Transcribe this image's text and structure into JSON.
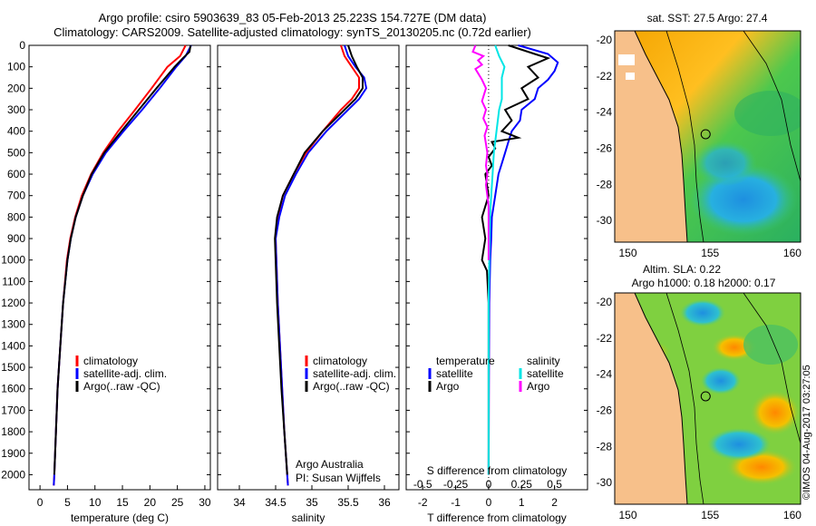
{
  "header": {
    "title_line1": "Argo profile: csiro 5903639_83 05-Feb-2013 25.223S 154.727E (DM data)",
    "title_line2": "Climatology: CARS2009. Satellite-adjusted climatology: synTS_20130205.nc (0.72d earlier)"
  },
  "chart_data": [
    {
      "type": "line",
      "name": "temperature-profile",
      "xlabel": "temperature (deg C)",
      "ylabel": "",
      "xlim": [
        -2,
        31
      ],
      "ylim": [
        2070,
        0
      ],
      "xticks": [
        0,
        5,
        10,
        15,
        20,
        25,
        30
      ],
      "yticks": [
        0,
        100,
        200,
        300,
        400,
        500,
        600,
        700,
        800,
        900,
        1000,
        1100,
        1200,
        1300,
        1400,
        1500,
        1600,
        1700,
        1800,
        1900,
        2000
      ],
      "legend": [
        "climatology",
        "satellite-adj. clim.",
        "Argo(..raw -QC)"
      ],
      "series": [
        {
          "name": "climatology",
          "color": "#ff0000",
          "depth": [
            0,
            50,
            100,
            200,
            300,
            400,
            500,
            600,
            700,
            800,
            900,
            1000,
            1200,
            1400,
            1600,
            1800,
            2000,
            2050
          ],
          "values": [
            26.5,
            25.5,
            23.2,
            20.3,
            17.3,
            14.2,
            11.5,
            9.3,
            7.6,
            6.4,
            5.5,
            4.9,
            4.2,
            3.7,
            3.2,
            2.9,
            2.6,
            2.5
          ]
        },
        {
          "name": "satellite-adj. clim.",
          "color": "#0000ff",
          "depth": [
            0,
            50,
            100,
            200,
            300,
            400,
            500,
            600,
            700,
            800,
            900,
            1000,
            1200,
            1400,
            1600,
            1800,
            2000,
            2050
          ],
          "values": [
            27.5,
            26.5,
            24.8,
            21.8,
            18.6,
            15.2,
            12.0,
            9.6,
            7.8,
            6.5,
            5.6,
            5.0,
            4.2,
            3.7,
            3.2,
            2.9,
            2.6,
            2.5
          ]
        },
        {
          "name": "Argo(..raw -QC)",
          "color": "#000000",
          "depth": [
            0,
            30,
            60,
            100,
            200,
            300,
            400,
            500,
            600,
            700,
            800,
            900,
            1000,
            1200,
            1400,
            1600,
            1800,
            2000
          ],
          "values": [
            27.4,
            27.2,
            26.0,
            24.5,
            21.2,
            18.0,
            14.8,
            11.7,
            9.4,
            7.8,
            6.5,
            5.6,
            5.0,
            4.2,
            3.7,
            3.2,
            2.9,
            2.6
          ]
        }
      ]
    },
    {
      "type": "line",
      "name": "salinity-profile",
      "xlabel": "salinity",
      "ylabel": "",
      "xlim": [
        33.7,
        36.2
      ],
      "ylim": [
        2070,
        0
      ],
      "xticks": [
        34,
        34.5,
        35,
        35.5,
        36
      ],
      "legend": [
        "climatology",
        "satellite-adj. clim.",
        "Argo(..raw -QC)"
      ],
      "series": [
        {
          "name": "climatology",
          "color": "#ff0000",
          "depth": [
            0,
            50,
            100,
            150,
            200,
            250,
            300,
            400,
            500,
            600,
            700,
            800,
            900,
            1000,
            1200,
            1400,
            1600,
            1800,
            2000,
            2050
          ],
          "values": [
            35.4,
            35.45,
            35.55,
            35.65,
            35.65,
            35.55,
            35.4,
            35.15,
            34.92,
            34.75,
            34.6,
            34.53,
            34.5,
            34.51,
            34.53,
            34.56,
            34.59,
            34.62,
            34.66,
            34.67
          ]
        },
        {
          "name": "satellite-adj. clim.",
          "color": "#0000ff",
          "depth": [
            0,
            50,
            100,
            150,
            200,
            250,
            300,
            400,
            500,
            600,
            700,
            800,
            900,
            1000,
            1200,
            1400,
            1600,
            1800,
            2000,
            2050
          ],
          "values": [
            35.45,
            35.5,
            35.6,
            35.72,
            35.75,
            35.65,
            35.5,
            35.2,
            34.95,
            34.78,
            34.63,
            34.55,
            34.5,
            34.51,
            34.53,
            34.56,
            34.59,
            34.62,
            34.66,
            34.67
          ]
        },
        {
          "name": "Argo(..raw -QC)",
          "color": "#000000",
          "depth": [
            0,
            50,
            100,
            150,
            200,
            250,
            300,
            400,
            500,
            600,
            700,
            800,
            900,
            1000,
            1200,
            1400,
            1600,
            1800,
            2000
          ],
          "values": [
            35.5,
            35.55,
            35.62,
            35.7,
            35.7,
            35.6,
            35.45,
            35.15,
            34.9,
            34.75,
            34.6,
            34.52,
            34.49,
            34.5,
            34.52,
            34.55,
            34.58,
            34.62,
            34.66
          ]
        }
      ],
      "annotation": {
        "line1": "Argo Australia",
        "line2": "PI: Susan Wijffels"
      }
    },
    {
      "type": "line",
      "name": "difference-profile",
      "xlabel": "T difference from climatology",
      "xlabel_top": "S difference from climatology",
      "xlim": [
        -2.5,
        3
      ],
      "ylim": [
        2070,
        0
      ],
      "xticks": [
        -2,
        -1,
        0,
        1,
        2
      ],
      "sticks": [
        "-0.5",
        "-0.25",
        "0",
        "0.25",
        "0.5"
      ],
      "legend_temperature": {
        "title": "temperature",
        "satellite": "satellite",
        "argo": "Argo"
      },
      "legend_salinity": {
        "title": "salinity",
        "satellite": "satellite",
        "argo": "Argo"
      },
      "series": [
        {
          "name": "temperature satellite",
          "color": "#0000ff",
          "depth": [
            0,
            40,
            80,
            120,
            160,
            200,
            250,
            300,
            350,
            400,
            450,
            500,
            550,
            600,
            700,
            800,
            900,
            1000,
            1200,
            1500,
            2000
          ],
          "values": [
            0.9,
            1.8,
            2.1,
            2.0,
            1.8,
            1.5,
            1.4,
            1.0,
            0.95,
            0.7,
            0.6,
            0.5,
            0.4,
            0.3,
            0.2,
            0.1,
            0.08,
            0.05,
            0.02,
            0.01,
            0.0
          ]
        },
        {
          "name": "temperature Argo",
          "color": "#000000",
          "depth": [
            0,
            40,
            60,
            100,
            150,
            200,
            250,
            300,
            350,
            400,
            430,
            450,
            480,
            520,
            560,
            600,
            700,
            800,
            900,
            1000,
            1050,
            1200,
            1500,
            2000
          ],
          "values": [
            0.6,
            1.4,
            1.8,
            1.2,
            1.5,
            1.0,
            1.2,
            0.5,
            0.7,
            0.4,
            0.9,
            0.1,
            0.2,
            0.0,
            0.1,
            -0.1,
            0.0,
            -0.2,
            -0.1,
            -0.2,
            -0.05,
            0.0,
            0.0,
            0.0
          ]
        },
        {
          "name": "salinity satellite",
          "color": "#00e5e5",
          "depth": [
            0,
            50,
            100,
            150,
            200,
            250,
            300,
            400,
            500,
            600,
            700,
            800,
            1000,
            1200,
            1500,
            2000
          ],
          "values": [
            0.05,
            0.08,
            0.12,
            0.1,
            0.1,
            0.1,
            0.08,
            0.06,
            0.04,
            0.03,
            0.02,
            0.01,
            0.005,
            0.0,
            0.0,
            0.0
          ]
        },
        {
          "name": "salinity Argo",
          "color": "#ff00ff",
          "depth": [
            0,
            30,
            50,
            70,
            90,
            110,
            130,
            160,
            200,
            260,
            300,
            340,
            380,
            420,
            460,
            500,
            560,
            600,
            650,
            700,
            750,
            800,
            900,
            1000
          ],
          "values": [
            -0.1,
            -0.12,
            -0.04,
            -0.08,
            -0.05,
            -0.1,
            -0.08,
            -0.05,
            -0.02,
            -0.05,
            -0.02,
            -0.04,
            -0.01,
            -0.03,
            -0.02,
            -0.01,
            -0.02,
            -0.01,
            -0.02,
            -0.01,
            0.0,
            0.0,
            0.0,
            0.0
          ]
        }
      ]
    },
    {
      "type": "heatmap",
      "name": "sst-map",
      "title": "sat. SST: 27.5 Argo: 27.4",
      "xticks": [
        150,
        155,
        160
      ],
      "yticks": [
        -20,
        -22,
        -24,
        -26,
        -28,
        -30
      ],
      "xlim": [
        149.2,
        160.5
      ],
      "ylim": [
        -31.2,
        -19.5
      ],
      "float_position": {
        "lon": 154.727,
        "lat": -25.223
      }
    },
    {
      "type": "heatmap",
      "name": "sla-map",
      "title": "Altim. SLA: 0.22",
      "subtitle": "Argo h1000: 0.18 h2000: 0.17",
      "xticks": [
        150,
        155,
        160
      ],
      "yticks": [
        -20,
        -22,
        -24,
        -26,
        -28,
        -30
      ],
      "xlim": [
        149.2,
        160.5
      ],
      "ylim": [
        -31.2,
        -19.5
      ],
      "float_position": {
        "lon": 154.727,
        "lat": -25.223
      }
    }
  ],
  "footer": {
    "stamp": "©IMOS 04-Aug-2017 03:27:05"
  }
}
